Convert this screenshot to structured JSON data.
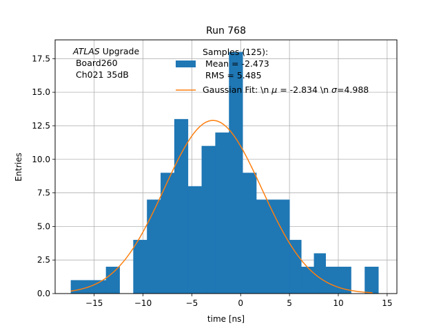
{
  "chart_data": {
    "type": "bar",
    "title": "Run 768",
    "xlabel": "time [ns]",
    "ylabel": "Entries",
    "xlim": [
      -19.0,
      16.0
    ],
    "ylim": [
      0,
      18.9
    ],
    "grid": true,
    "xticks": [
      -15,
      -10,
      -5,
      0,
      5,
      10,
      15
    ],
    "xtick_labels": [
      "−15",
      "−10",
      "−5",
      "0",
      "5",
      "10",
      "15"
    ],
    "yticks": [
      0.0,
      2.5,
      5.0,
      7.5,
      10.0,
      12.5,
      15.0,
      17.5
    ],
    "ytick_labels": [
      "0.0",
      "2.5",
      "5.0",
      "7.5",
      "10.0",
      "12.5",
      "15.0",
      "17.5"
    ],
    "annotation": {
      "line1_italic": "ATLAS",
      "line1_rest": " Upgrade",
      "line2": " Board260",
      "line3": " Ch021 35dB"
    },
    "legend": {
      "placement": "top-right",
      "histogram_label_lines": [
        "Samples (125):",
        " Mean = -2.473",
        " RMS = 5.485"
      ],
      "fit_label_prefix": "Gaussian Fit: \\n ",
      "fit_label_mu": "μ",
      "fit_label_mid": " = -2.834 \\n ",
      "fit_label_sigma": "σ",
      "fit_label_suffix": "=4.988"
    },
    "series": [
      {
        "name": "Samples (125)",
        "type": "histogram",
        "color": "#1f77b4",
        "bin_edges": [
          -17.4,
          -16.0,
          -14.6,
          -13.8,
          -12.4,
          -11.0,
          -9.6,
          -8.2,
          -6.8,
          -5.4,
          -4.0,
          -2.6,
          -1.2,
          0.2,
          1.6,
          3.4,
          5.0,
          6.2,
          7.5,
          8.7,
          10.0,
          11.3,
          12.7,
          14.1
        ],
        "counts": [
          1,
          1,
          1,
          2,
          0,
          4,
          7,
          9,
          13,
          8,
          11,
          12,
          18,
          9,
          7,
          7,
          4,
          2,
          3,
          2,
          2,
          0,
          2
        ]
      },
      {
        "name": "Gaussian Fit",
        "type": "line",
        "color": "#ff7f0e",
        "mu": -2.834,
        "sigma": 4.988,
        "amplitude": 12.9,
        "x_range": [
          -17.4,
          13.5
        ]
      }
    ]
  }
}
